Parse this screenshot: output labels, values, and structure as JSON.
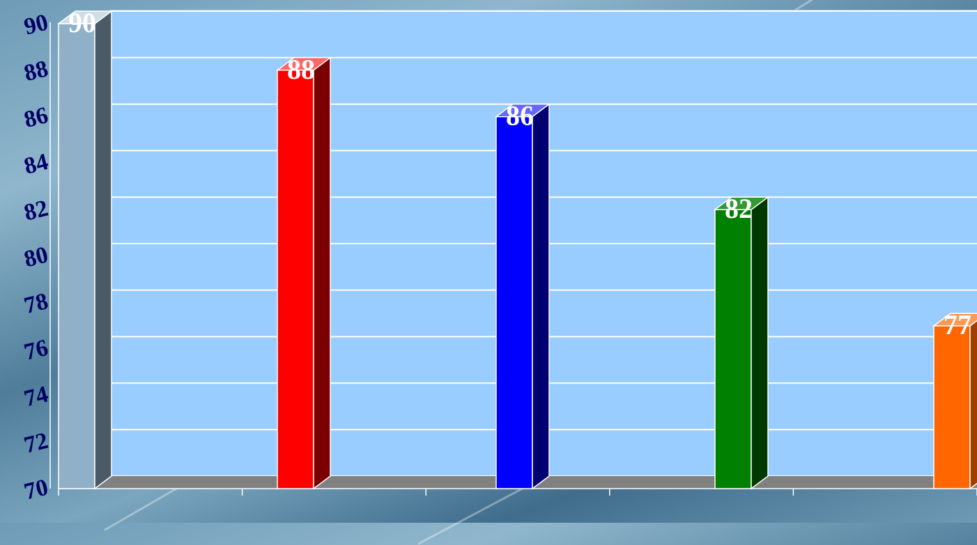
{
  "chart_data": {
    "type": "bar",
    "categories": [
      "",
      "",
      "",
      "",
      ""
    ],
    "values": [
      90,
      88,
      86,
      82,
      77
    ],
    "data_labels": [
      "90",
      "88",
      "86",
      "82",
      "77"
    ],
    "colors": [
      "#8fb0c6",
      "#ff0000",
      "#0000ff",
      "#008000",
      "#ff6600"
    ],
    "side_colors": [
      "#4a5a66",
      "#7a0000",
      "#000070",
      "#003a00",
      "#a04000"
    ],
    "top_colors": [
      "#cfdde6",
      "#ff6666",
      "#6666ff",
      "#339933",
      "#ff9955"
    ],
    "ylim": [
      70,
      90
    ],
    "yticks": [
      "70",
      "72",
      "74",
      "76",
      "78",
      "80",
      "82",
      "84",
      "86",
      "88",
      "90"
    ],
    "title": "",
    "xlabel": "",
    "ylabel": "",
    "grid": true,
    "plot_background": "#99ccff",
    "gridline_color": "#ffffff",
    "floor_color": "#808080",
    "tick_label_color": "#000066"
  }
}
